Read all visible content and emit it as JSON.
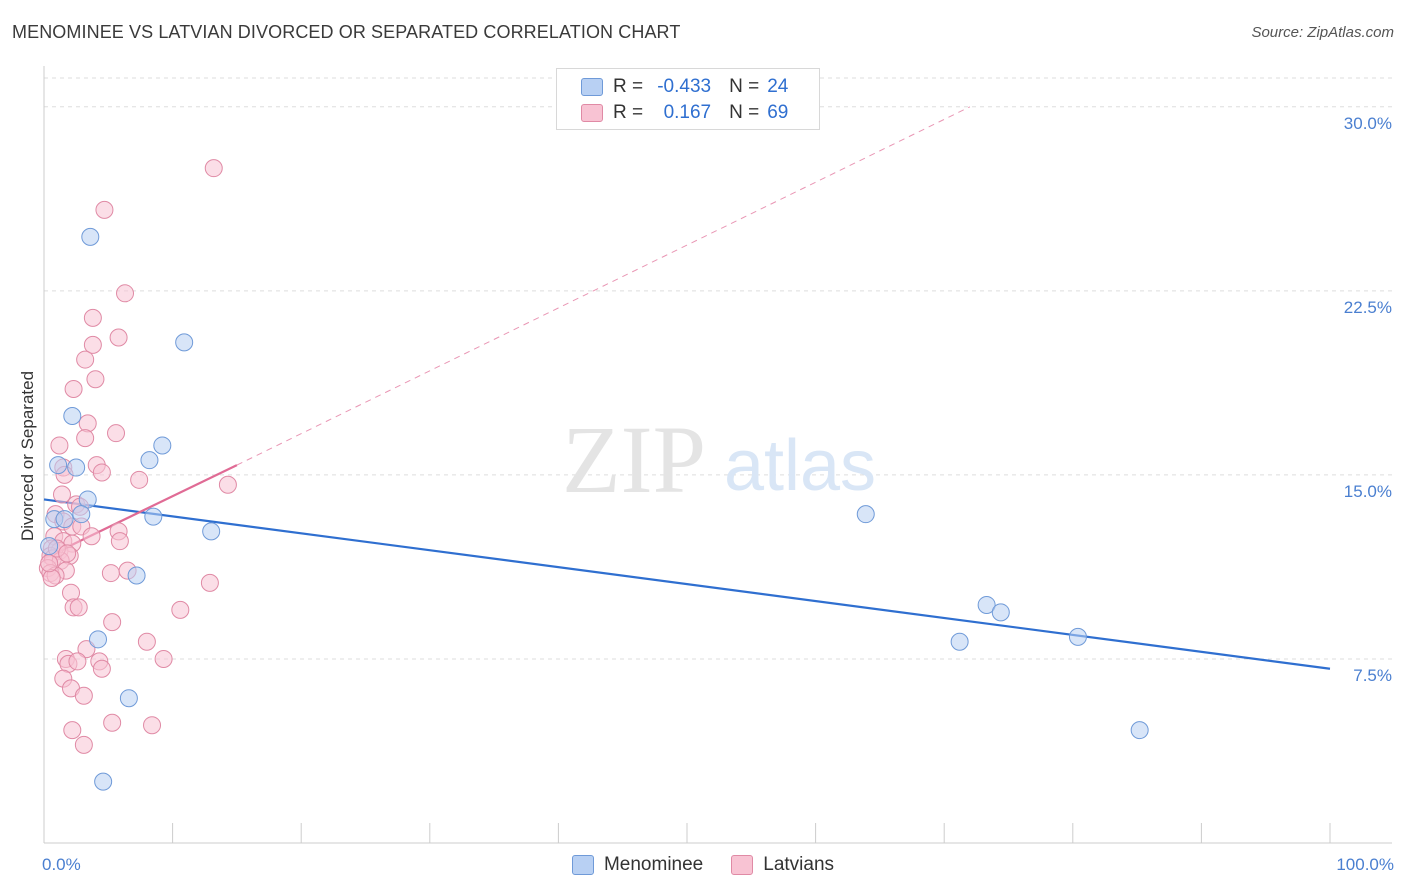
{
  "title": "MENOMINEE VS LATVIAN DIVORCED OR SEPARATED CORRELATION CHART",
  "source": "Source: ZipAtlas.com",
  "watermark": {
    "zip": "ZIP",
    "atlas": "atlas"
  },
  "colors": {
    "blue": "#2f6fd0",
    "blue_fill": "#b8d0f3",
    "blue_stroke": "#6f9ad8",
    "pink": "#e06b95",
    "pink_fill": "#f8c3d3",
    "pink_stroke": "#e08aa5",
    "grid": "#dddddd",
    "tick_label": "#4a7fd0"
  },
  "legend": {
    "rows": [
      {
        "r_label": "R =",
        "r_value": "-0.433",
        "n_label": "N =",
        "n_value": "24"
      },
      {
        "r_label": "R =",
        "r_value": "0.167",
        "n_label": "N =",
        "n_value": "69"
      }
    ]
  },
  "bottom_legend": {
    "series1": "Menominee",
    "series2": "Latvians"
  },
  "chart_data": {
    "type": "scatter",
    "title": "MENOMINEE VS LATVIAN DIVORCED OR SEPARATED CORRELATION CHART",
    "xlabel": "",
    "ylabel": "Divorced or Separated",
    "xlim": [
      0,
      100
    ],
    "ylim": [
      0,
      31.5
    ],
    "x_tick_labels": [
      {
        "value": 0,
        "label": "0.0%"
      },
      {
        "value": 100,
        "label": "100.0%"
      }
    ],
    "y_ticks": [
      {
        "value": 7.5,
        "label": "7.5%"
      },
      {
        "value": 15.0,
        "label": "15.0%"
      },
      {
        "value": 22.5,
        "label": "22.5%"
      },
      {
        "value": 30.0,
        "label": "30.0%"
      }
    ],
    "x_minor_ticks": [
      0,
      10,
      20,
      30,
      40,
      50,
      60,
      70,
      80,
      90,
      100
    ],
    "series": [
      {
        "name": "Menominee",
        "color": "#2f6fd0",
        "r": -0.433,
        "n": 24,
        "trend": {
          "x0": 0,
          "y0": 14.0,
          "x1": 100,
          "y1": 7.1,
          "dashed_extension": false
        },
        "points": [
          [
            3.6,
            24.7
          ],
          [
            10.9,
            20.4
          ],
          [
            2.2,
            17.4
          ],
          [
            9.2,
            16.2
          ],
          [
            8.2,
            15.6
          ],
          [
            1.1,
            15.4
          ],
          [
            2.5,
            15.3
          ],
          [
            3.4,
            14.0
          ],
          [
            0.8,
            13.2
          ],
          [
            1.6,
            13.2
          ],
          [
            2.9,
            13.4
          ],
          [
            8.5,
            13.3
          ],
          [
            13.0,
            12.7
          ],
          [
            7.2,
            10.9
          ],
          [
            4.2,
            8.3
          ],
          [
            6.6,
            5.9
          ],
          [
            4.6,
            2.5
          ],
          [
            63.9,
            13.4
          ],
          [
            73.3,
            9.7
          ],
          [
            74.4,
            9.4
          ],
          [
            71.2,
            8.2
          ],
          [
            80.4,
            8.4
          ],
          [
            85.2,
            4.6
          ],
          [
            0.4,
            12.1
          ]
        ]
      },
      {
        "name": "Latvians",
        "color": "#e06b95",
        "r": 0.167,
        "n": 69,
        "trend": {
          "x0": 0,
          "y0": 11.6,
          "x1": 15.0,
          "y1": 15.4,
          "dashed_extension": true,
          "x_ext": 72.0,
          "y_ext": 30.0
        },
        "points": [
          [
            13.2,
            27.5
          ],
          [
            4.7,
            25.8
          ],
          [
            6.3,
            22.4
          ],
          [
            3.8,
            21.4
          ],
          [
            5.8,
            20.6
          ],
          [
            3.8,
            20.3
          ],
          [
            3.2,
            19.7
          ],
          [
            4.0,
            18.9
          ],
          [
            2.3,
            18.5
          ],
          [
            3.4,
            17.1
          ],
          [
            5.6,
            16.7
          ],
          [
            3.2,
            16.5
          ],
          [
            1.2,
            16.2
          ],
          [
            4.1,
            15.4
          ],
          [
            1.5,
            15.3
          ],
          [
            4.5,
            15.1
          ],
          [
            1.6,
            15.0
          ],
          [
            7.4,
            14.8
          ],
          [
            14.3,
            14.6
          ],
          [
            1.4,
            14.2
          ],
          [
            2.5,
            13.8
          ],
          [
            0.9,
            13.4
          ],
          [
            1.5,
            13.1
          ],
          [
            2.2,
            12.9
          ],
          [
            2.9,
            12.9
          ],
          [
            5.8,
            12.7
          ],
          [
            0.8,
            12.5
          ],
          [
            3.7,
            12.5
          ],
          [
            1.5,
            12.3
          ],
          [
            2.2,
            12.2
          ],
          [
            5.9,
            12.3
          ],
          [
            0.6,
            12.0
          ],
          [
            1.2,
            11.9
          ],
          [
            0.5,
            11.7
          ],
          [
            2.0,
            11.7
          ],
          [
            0.7,
            11.6
          ],
          [
            1.3,
            11.5
          ],
          [
            0.3,
            11.2
          ],
          [
            1.7,
            11.1
          ],
          [
            0.5,
            11.0
          ],
          [
            0.9,
            10.9
          ],
          [
            0.6,
            10.8
          ],
          [
            5.2,
            11.0
          ],
          [
            6.5,
            11.1
          ],
          [
            12.9,
            10.6
          ],
          [
            2.1,
            10.2
          ],
          [
            2.3,
            9.6
          ],
          [
            2.7,
            9.6
          ],
          [
            10.6,
            9.5
          ],
          [
            5.3,
            9.0
          ],
          [
            8.0,
            8.2
          ],
          [
            3.3,
            7.9
          ],
          [
            1.7,
            7.5
          ],
          [
            1.9,
            7.3
          ],
          [
            2.6,
            7.4
          ],
          [
            9.3,
            7.5
          ],
          [
            4.3,
            7.4
          ],
          [
            4.5,
            7.1
          ],
          [
            1.5,
            6.7
          ],
          [
            2.1,
            6.3
          ],
          [
            3.1,
            6.0
          ],
          [
            5.3,
            4.9
          ],
          [
            8.4,
            4.8
          ],
          [
            2.2,
            4.6
          ],
          [
            3.1,
            4.0
          ],
          [
            0.4,
            11.4
          ],
          [
            1.0,
            12.0
          ],
          [
            2.8,
            13.7
          ],
          [
            1.8,
            11.8
          ]
        ]
      }
    ]
  }
}
